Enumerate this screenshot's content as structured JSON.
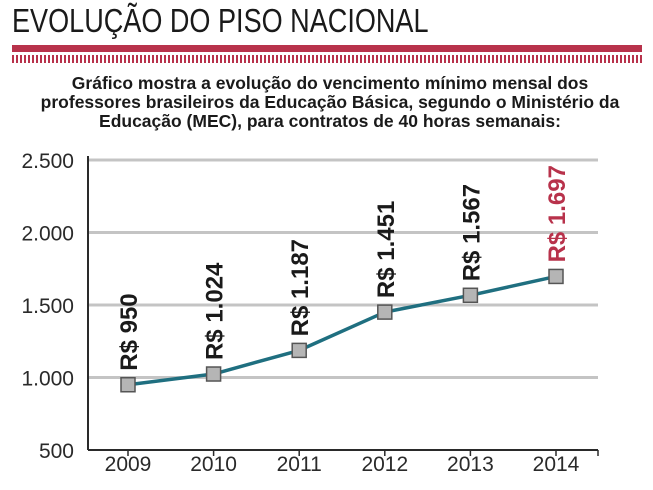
{
  "header": {
    "title": "EVOLUÇÃO DO PISO NACIONAL",
    "accent_color": "#b8324b"
  },
  "subtitle_lines": [
    "Gráfico mostra  a evolução do vencimento mínimo mensal dos",
    "professores brasileiros da Educação Básica, segundo o Ministério da",
    "Educação (MEC), para contratos de 40 horas semanais:"
  ],
  "chart_data": {
    "type": "line",
    "categories": [
      "2009",
      "2010",
      "2011",
      "2012",
      "2013",
      "2014"
    ],
    "values": [
      950,
      1024,
      1187,
      1451,
      1567,
      1697
    ],
    "data_labels": [
      "R$ 950",
      "R$ 1.024",
      "R$ 1.187",
      "R$ 1.451",
      "R$ 1.567",
      "R$ 1.697"
    ],
    "highlight_index": 5,
    "y_ticks": [
      500,
      1000,
      1500,
      2000,
      2500
    ],
    "y_tick_labels": [
      "500",
      "1.000",
      "1.500",
      "2.000",
      "2.500"
    ],
    "ylim": [
      500,
      2500
    ],
    "grid": true,
    "line_color": "#1f6f80",
    "marker_color": "#b5b5b5",
    "label_color": "#1a1a1a",
    "highlight_color": "#b8324b",
    "grid_color": "#c4c4c4"
  }
}
